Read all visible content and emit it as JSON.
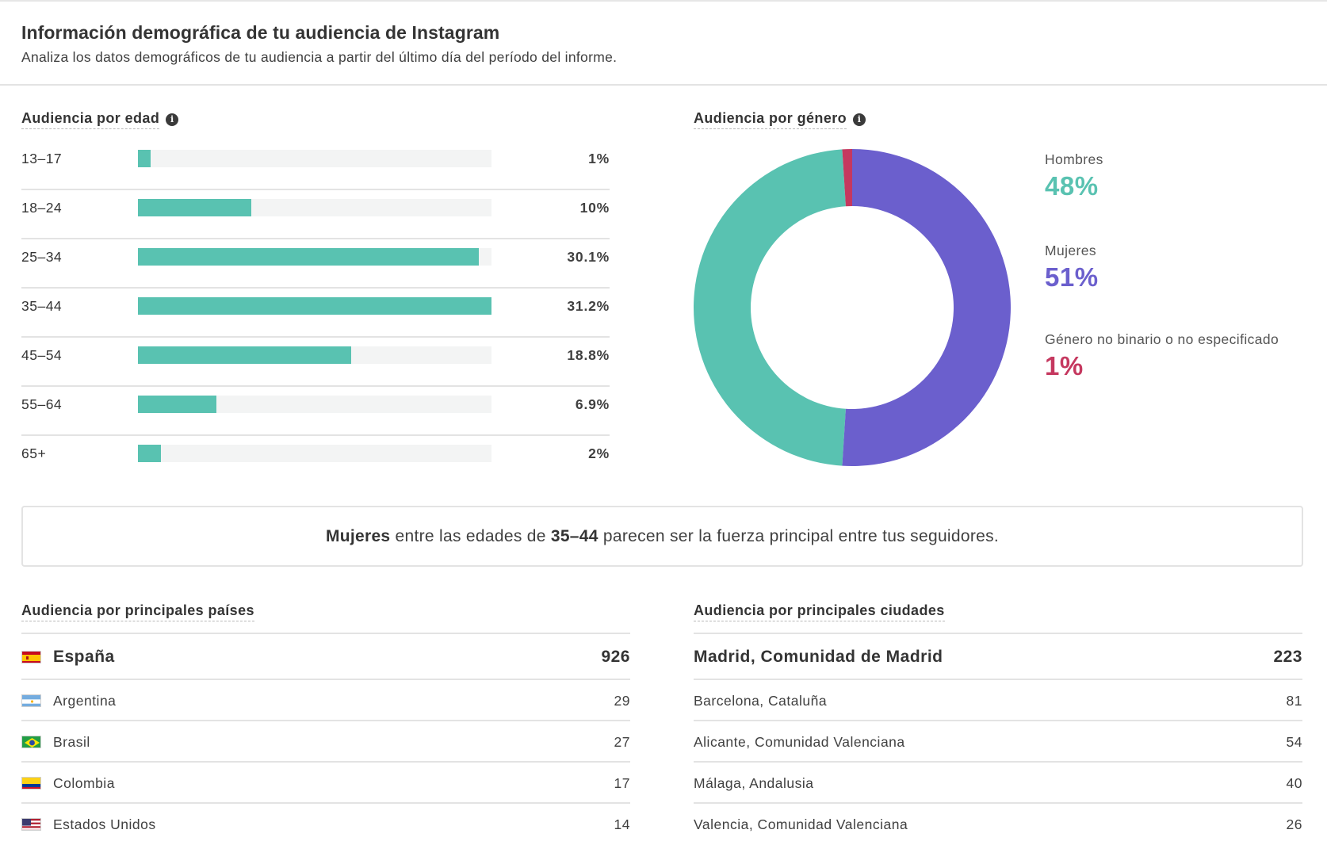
{
  "header": {
    "title": "Información demográfica de tu audiencia de Instagram",
    "subtitle": "Analiza los datos demográficos de tu audiencia a partir del último día del período del informe."
  },
  "age": {
    "title": "Audiencia por edad",
    "info_icon": "info-icon",
    "bar_color": "#59c2b1",
    "rows": [
      {
        "label": "13–17",
        "value": "1%",
        "pct": 1
      },
      {
        "label": "18–24",
        "value": "10%",
        "pct": 10
      },
      {
        "label": "25–34",
        "value": "30.1%",
        "pct": 30.1
      },
      {
        "label": "35–44",
        "value": "31.2%",
        "pct": 31.2
      },
      {
        "label": "45–54",
        "value": "18.8%",
        "pct": 18.8
      },
      {
        "label": "55–64",
        "value": "6.9%",
        "pct": 6.9
      },
      {
        "label": "65+",
        "value": "2%",
        "pct": 2
      }
    ]
  },
  "gender": {
    "title": "Audiencia por género",
    "info_icon": "info-icon",
    "items": [
      {
        "name": "Hombres",
        "value": "48%",
        "pct": 48,
        "color": "#59c2b1"
      },
      {
        "name": "Mujeres",
        "value": "51%",
        "pct": 51,
        "color": "#6b5fcd"
      },
      {
        "name": "Género no binario o no especificado",
        "value": "1%",
        "pct": 1,
        "color": "#c5385f"
      }
    ]
  },
  "insight": {
    "gender": "Mujeres",
    "text1": " entre las edades de ",
    "age": "35–44",
    "text2": " parecen ser la fuerza principal entre tus seguidores."
  },
  "countries": {
    "title": "Audiencia por principales países",
    "rows": [
      {
        "name": "España",
        "value": "926",
        "flag": "flag-spain-icon"
      },
      {
        "name": "Argentina",
        "value": "29",
        "flag": "flag-argentina-icon"
      },
      {
        "name": "Brasil",
        "value": "27",
        "flag": "flag-brazil-icon"
      },
      {
        "name": "Colombia",
        "value": "17",
        "flag": "flag-colombia-icon"
      },
      {
        "name": "Estados Unidos",
        "value": "14",
        "flag": "flag-usa-icon"
      }
    ]
  },
  "cities": {
    "title": "Audiencia por principales ciudades",
    "rows": [
      {
        "name": "Madrid, Comunidad de Madrid",
        "value": "223"
      },
      {
        "name": "Barcelona, Cataluña",
        "value": "81"
      },
      {
        "name": "Alicante, Comunidad Valenciana",
        "value": "54"
      },
      {
        "name": "Málaga, Andalusia",
        "value": "40"
      },
      {
        "name": "Valencia, Comunidad Valenciana",
        "value": "26"
      }
    ]
  }
}
